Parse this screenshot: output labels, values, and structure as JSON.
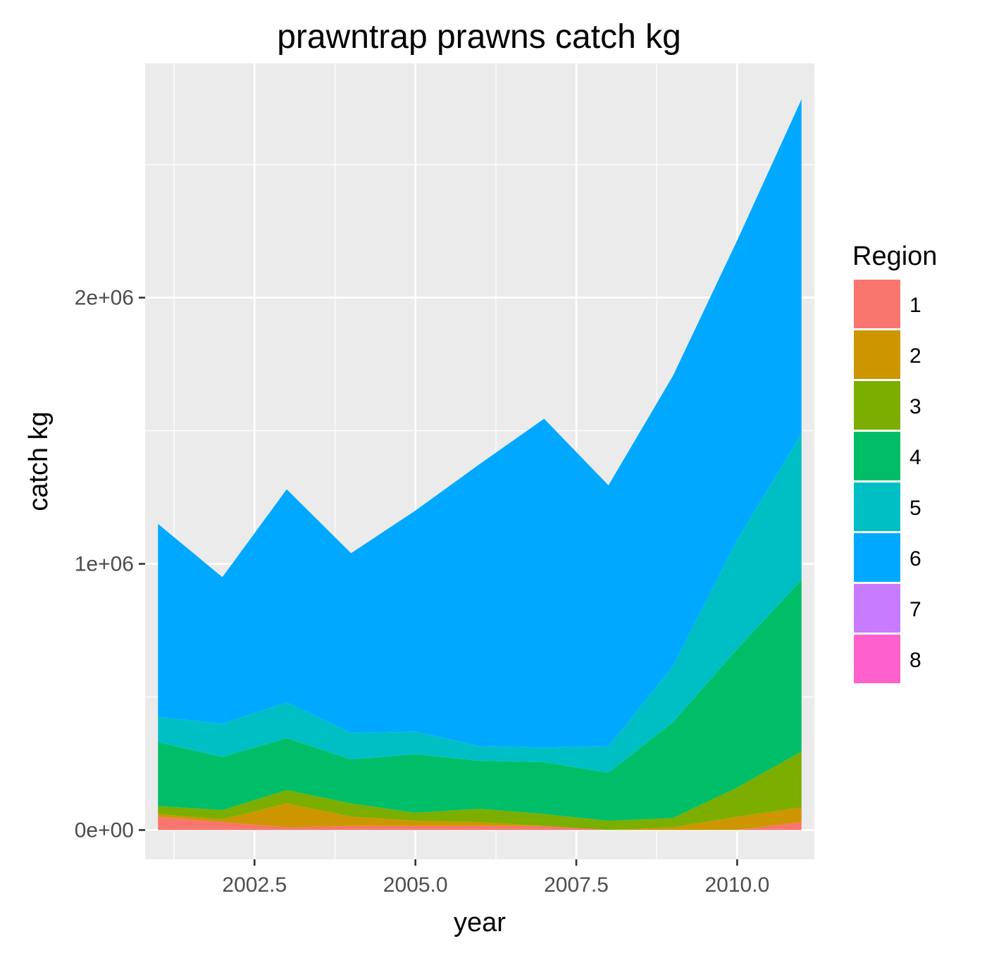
{
  "chart_data": {
    "type": "area",
    "stacked": true,
    "title": "prawntrap prawns catch kg",
    "xlabel": "year",
    "ylabel": "catch kg",
    "xlim": [
      2000.8,
      2011.2
    ],
    "ylim": [
      -110000,
      2880000
    ],
    "x_ticks": [
      2002.5,
      2005.0,
      2007.5,
      2010.0
    ],
    "x_tick_labels": [
      "2002.5",
      "2005.0",
      "2007.5",
      "2010.0"
    ],
    "y_ticks": [
      0,
      1000000,
      2000000
    ],
    "y_tick_labels": [
      "0e+00",
      "1e+06",
      "2e+06"
    ],
    "grid": true,
    "legend": {
      "title": "Region",
      "position": "right"
    },
    "x": [
      2001,
      2002,
      2003,
      2004,
      2005,
      2006,
      2007,
      2008,
      2009,
      2010,
      2011
    ],
    "series": [
      {
        "name": "1",
        "color": "#F8766D",
        "values": [
          50000,
          30000,
          10000,
          15000,
          15000,
          15000,
          15000,
          0,
          0,
          0,
          30000
        ]
      },
      {
        "name": "2",
        "color": "#CD9600",
        "values": [
          10000,
          10000,
          90000,
          35000,
          20000,
          15000,
          0,
          0,
          10000,
          50000,
          55000
        ]
      },
      {
        "name": "3",
        "color": "#7CAE00",
        "values": [
          30000,
          35000,
          50000,
          50000,
          30000,
          50000,
          45000,
          35000,
          35000,
          110000,
          210000
        ]
      },
      {
        "name": "4",
        "color": "#00BE67",
        "values": [
          240000,
          200000,
          195000,
          165000,
          220000,
          180000,
          195000,
          180000,
          360000,
          520000,
          645000
        ]
      },
      {
        "name": "5",
        "color": "#00BFC4",
        "values": [
          95000,
          125000,
          135000,
          100000,
          85000,
          55000,
          55000,
          100000,
          210000,
          410000,
          550000
        ]
      },
      {
        "name": "6",
        "color": "#00A9FF",
        "values": [
          725000,
          550000,
          800000,
          675000,
          830000,
          1060000,
          1235000,
          980000,
          1090000,
          1125000,
          1255000
        ]
      },
      {
        "name": "7",
        "color": "#C77CFF",
        "values": [
          0,
          0,
          0,
          0,
          0,
          0,
          0,
          0,
          0,
          0,
          0
        ]
      },
      {
        "name": "8",
        "color": "#FF61CC",
        "values": [
          0,
          0,
          0,
          0,
          0,
          0,
          0,
          0,
          0,
          0,
          0
        ]
      }
    ]
  }
}
